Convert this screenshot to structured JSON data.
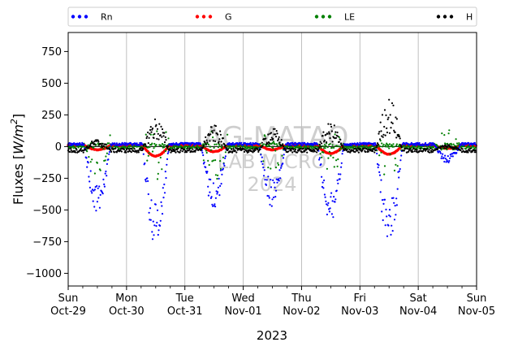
{
  "chart_data": {
    "type": "scatter",
    "title": "",
    "ylabel": "Fluxes [W/m²]",
    "ylabel_parts": {
      "prefix": "Fluxes [",
      "var": "W/m",
      "exp": "2",
      "suffix": "]"
    },
    "xlabel": "2023",
    "ylim": [
      -1100,
      900
    ],
    "xlim": [
      "2023-10-29",
      "2023-11-05"
    ],
    "yticks": [
      750,
      500,
      250,
      0,
      -250,
      -500,
      -750,
      -1000
    ],
    "xticks": [
      {
        "day": "Sun",
        "date": "Oct-29"
      },
      {
        "day": "Mon",
        "date": "Oct-30"
      },
      {
        "day": "Tue",
        "date": "Oct-31"
      },
      {
        "day": "Wed",
        "date": "Nov-01"
      },
      {
        "day": "Thu",
        "date": "Nov-02"
      },
      {
        "day": "Fri",
        "date": "Nov-03"
      },
      {
        "day": "Sat",
        "date": "Nov-04"
      },
      {
        "day": "Sun",
        "date": "Nov-05"
      }
    ],
    "grid": "vertical",
    "legend_placement": "top (above plot)",
    "watermark": [
      "IAG-MATAO",
      "LAB MICRO",
      "2024"
    ],
    "series": [
      {
        "name": "Rn",
        "color": "#0000ff",
        "daily_min_by_day": [
          -520,
          -790,
          -500,
          -480,
          -610,
          -800,
          -130
        ],
        "night_value": 20
      },
      {
        "name": "G",
        "color": "#ff0000",
        "daily_min_by_day": [
          -25,
          -75,
          -40,
          -25,
          -55,
          -60,
          -15
        ],
        "night_value": 10
      },
      {
        "name": "LE",
        "color": "#008000",
        "daily_peak_by_day": [
          -250,
          -280,
          -320,
          -250,
          -220,
          -300,
          -60
        ],
        "night_value": -5
      },
      {
        "name": "H",
        "color": "#000000",
        "daily_peak_by_day": [
          60,
          230,
          170,
          150,
          190,
          390,
          20
        ],
        "night_value": -30
      }
    ]
  }
}
